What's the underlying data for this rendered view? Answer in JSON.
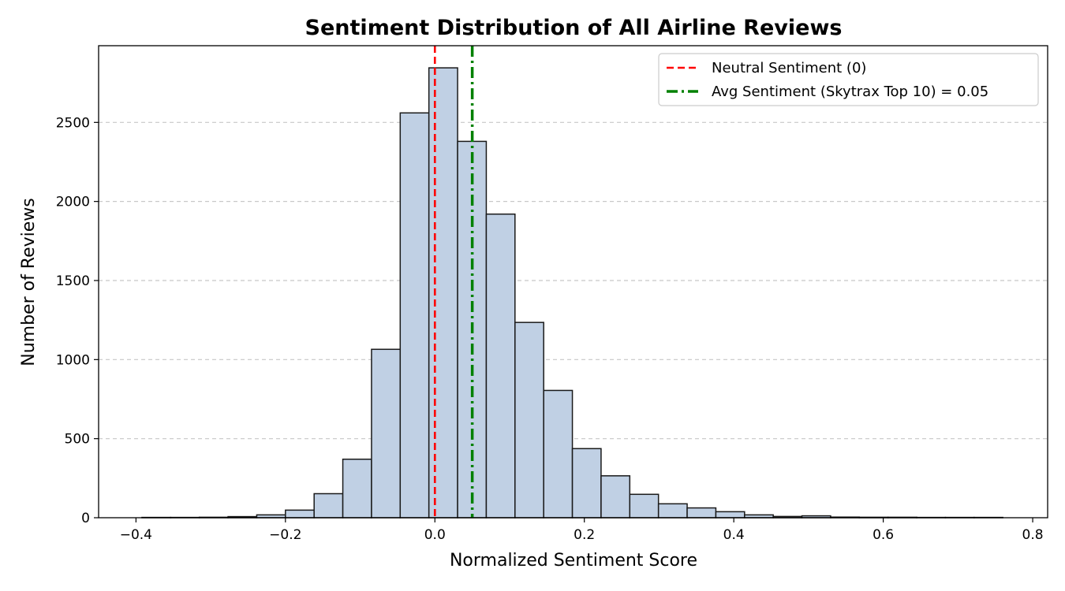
{
  "chart_data": {
    "type": "bar",
    "title": "Sentiment Distribution of All Airline Reviews",
    "xlabel": "Normalized Sentiment Score",
    "ylabel": "Number of Reviews",
    "xlim": [
      -0.45,
      0.82
    ],
    "ylim": [
      0,
      2985
    ],
    "x_ticks": [
      -0.4,
      -0.2,
      0.0,
      0.2,
      0.4,
      0.6,
      0.8
    ],
    "x_tick_labels": [
      "−0.4",
      "−0.2",
      "0.0",
      "0.2",
      "0.4",
      "0.6",
      "0.8"
    ],
    "y_ticks": [
      0,
      500,
      1000,
      1500,
      2000,
      2500
    ],
    "y_tick_labels": [
      "0",
      "500",
      "1000",
      "1500",
      "2000",
      "2500"
    ],
    "grid": "y-dashed",
    "legend_placement": "top-right",
    "bin_edges": [
      -0.392,
      -0.3536,
      -0.3152,
      -0.2768,
      -0.2384,
      -0.2,
      -0.1616,
      -0.1232,
      -0.0848,
      -0.0464,
      -0.008,
      0.0304,
      0.0688,
      0.1072,
      0.1456,
      0.184,
      0.2224,
      0.2608,
      0.2992,
      0.3376,
      0.376,
      0.4144,
      0.4528,
      0.4912,
      0.5296,
      0.568,
      0.6064,
      0.6448,
      0.6832,
      0.7216,
      0.76
    ],
    "counts": [
      2,
      2,
      3,
      7,
      18,
      48,
      152,
      370,
      1065,
      2560,
      2845,
      2380,
      1920,
      1235,
      805,
      437,
      265,
      148,
      88,
      62,
      38,
      18,
      8,
      12,
      4,
      3,
      3,
      2,
      2,
      2
    ],
    "bar_color": "#c0d0e4",
    "bar_edge_color": "#1a1a1a",
    "vlines": [
      {
        "x": 0.0,
        "label": "Neutral Sentiment (0)",
        "color": "#ff0000",
        "style": "dashed"
      },
      {
        "x": 0.05,
        "label": "Avg Sentiment (Skytrax Top 10) = 0.05",
        "color": "#008000",
        "style": "dashdot"
      }
    ]
  }
}
